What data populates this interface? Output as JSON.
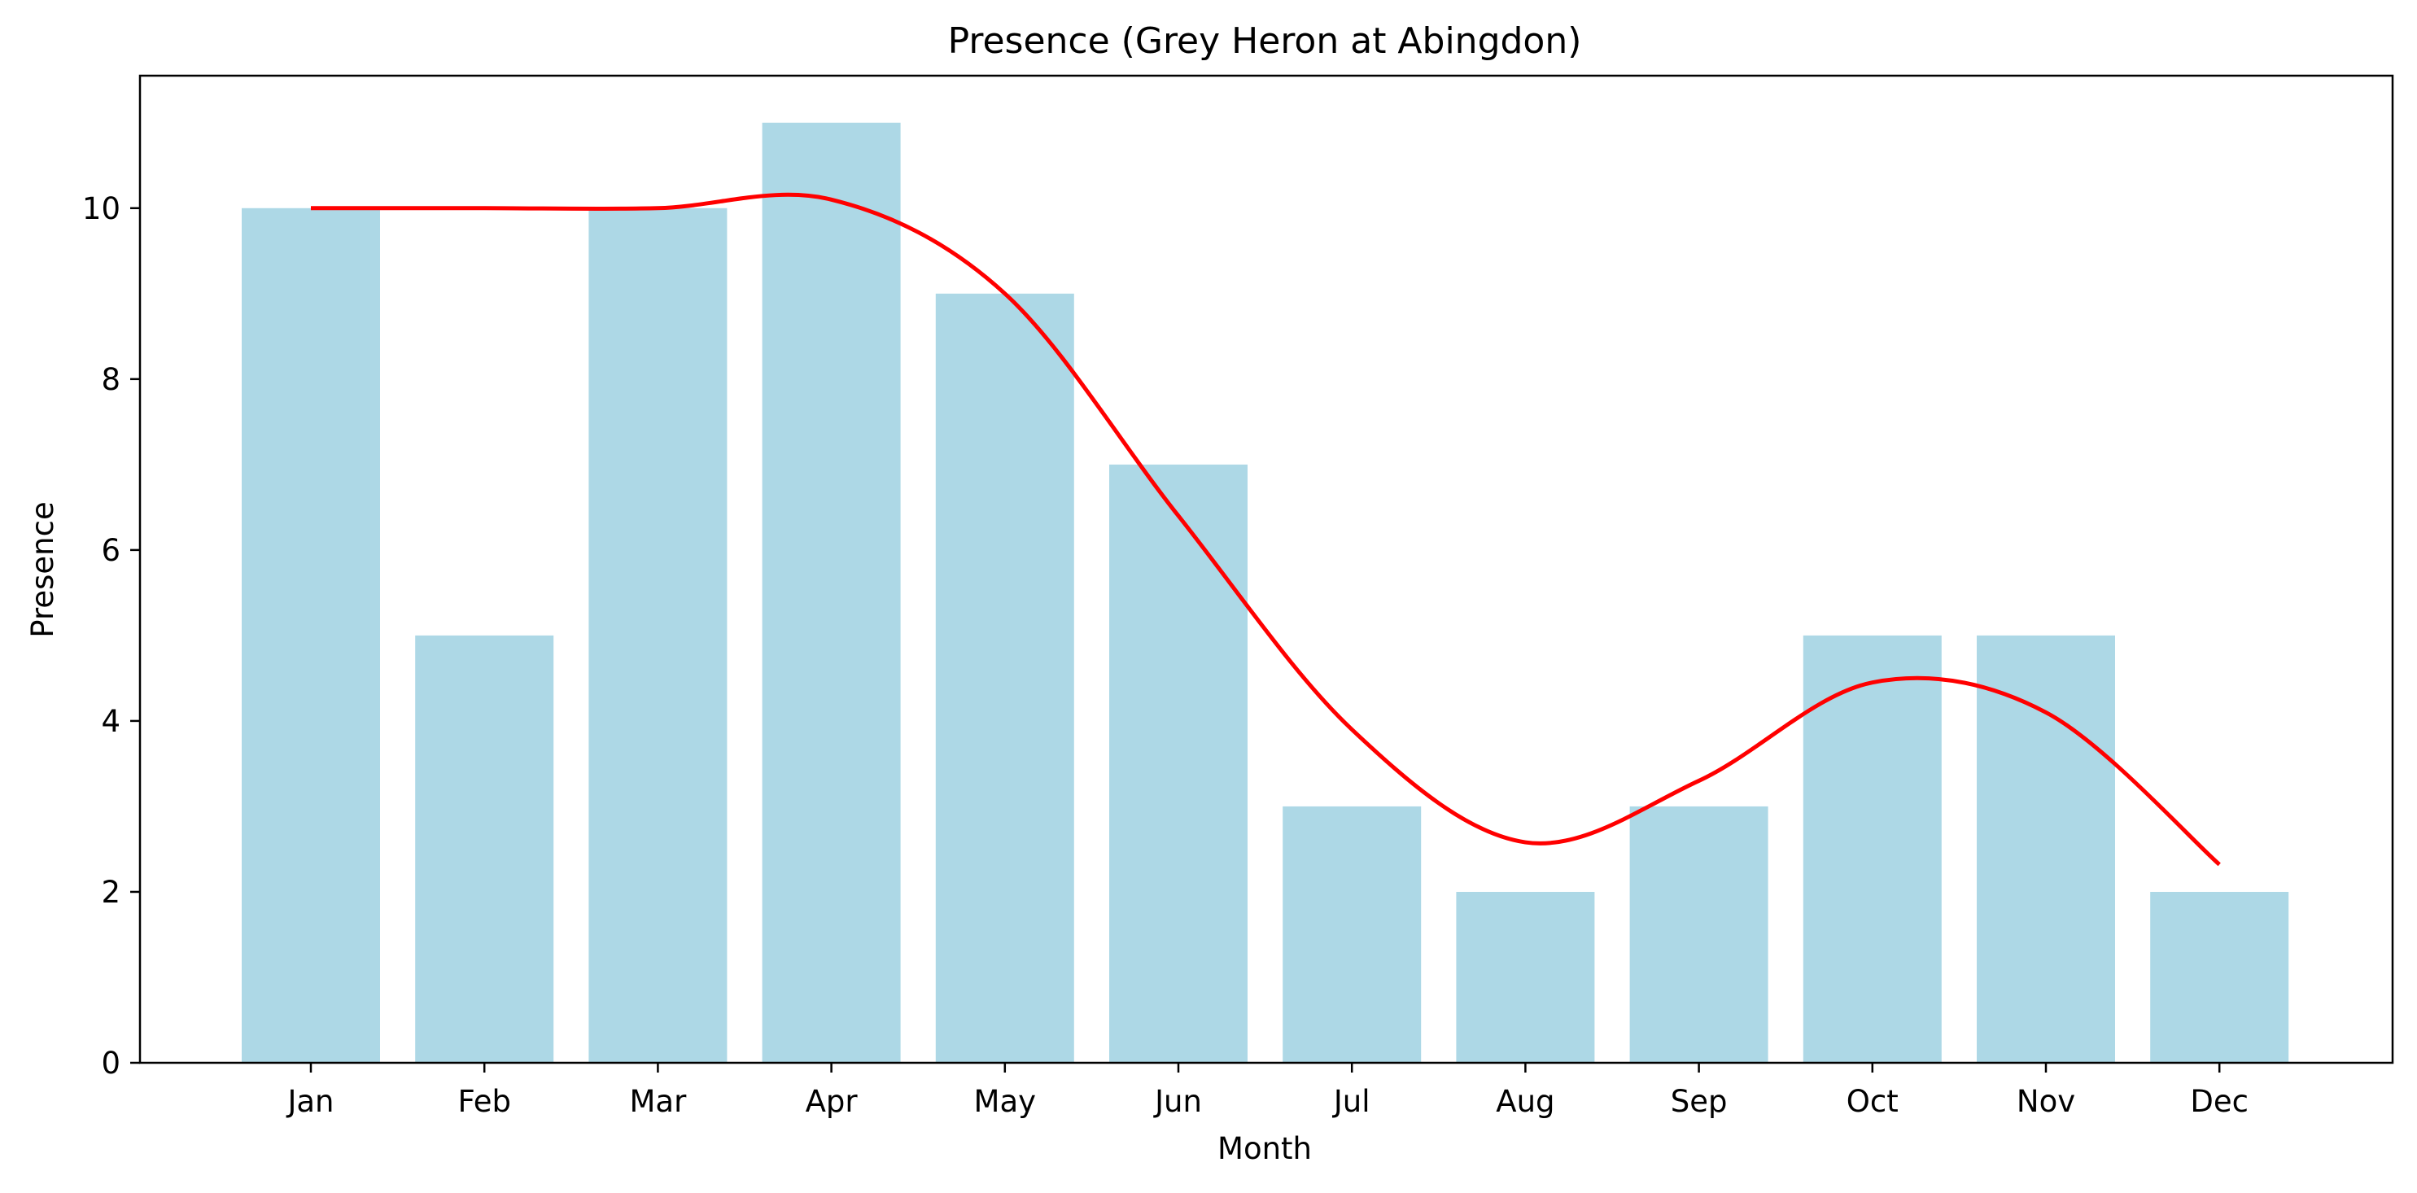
{
  "chart_data": {
    "type": "bar",
    "title": "Presence (Grey Heron at Abingdon)",
    "xlabel": "Month",
    "ylabel": "Presence",
    "categories": [
      "Jan",
      "Feb",
      "Mar",
      "Apr",
      "May",
      "Jun",
      "Jul",
      "Aug",
      "Sep",
      "Oct",
      "Nov",
      "Dec"
    ],
    "series": [
      {
        "type": "bar",
        "values": [
          10,
          5,
          10,
          11,
          9,
          7,
          3,
          2,
          3,
          5,
          5,
          2
        ]
      },
      {
        "type": "line",
        "values": [
          10,
          10,
          10,
          10.1,
          9.0,
          6.4,
          3.9,
          2.58,
          3.3,
          4.45,
          4.1,
          2.32
        ]
      }
    ],
    "ylim": [
      0,
      11.55
    ],
    "yticks": [
      0,
      2,
      4,
      6,
      8,
      10
    ],
    "grid": false,
    "colors": {
      "bar": "#add8e6",
      "line": "#ff0000",
      "axis": "#000000"
    }
  }
}
